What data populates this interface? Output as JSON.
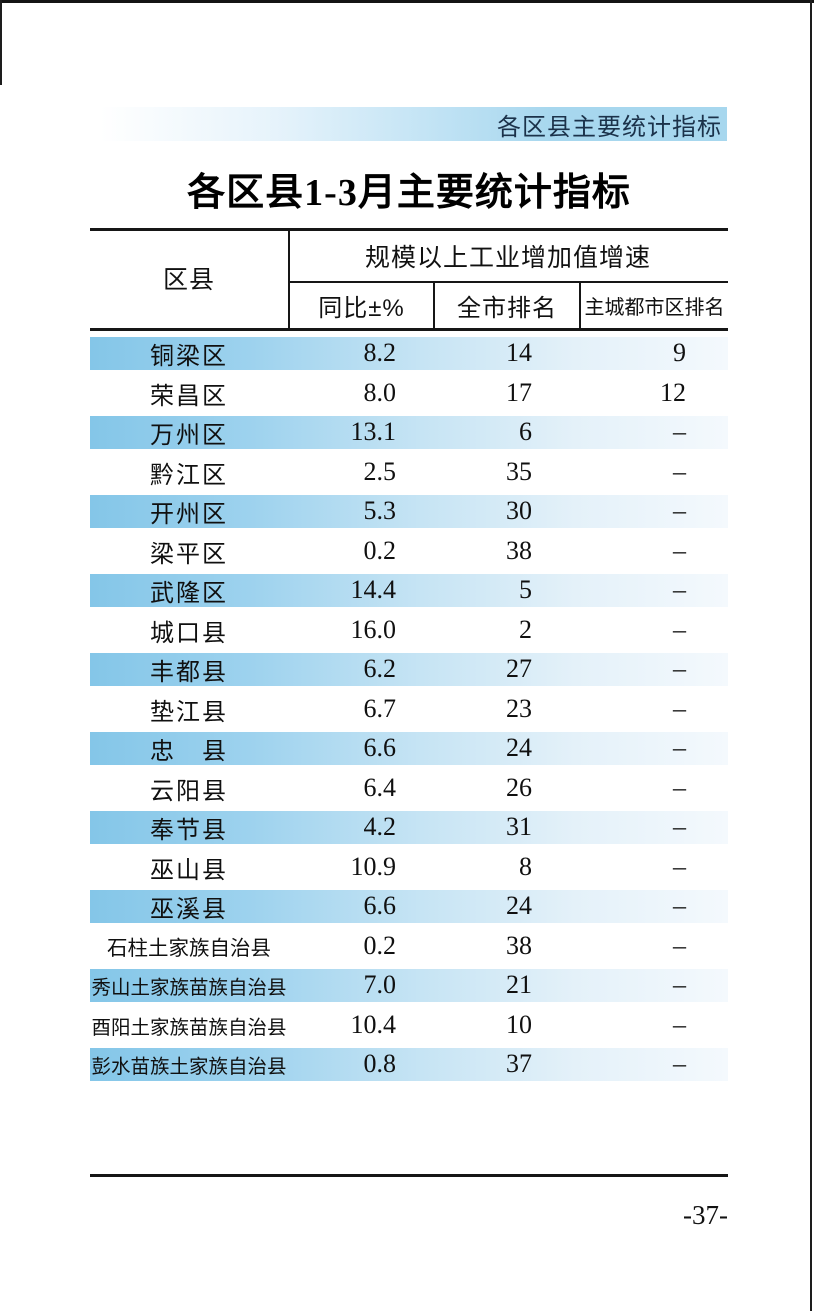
{
  "document": {
    "header_bar_label": "各区县主要统计指标",
    "title": "各区县1-3月主要统计指标",
    "page_number": "-37-"
  },
  "table": {
    "corner_header": "区县",
    "group_header": "规模以上工业增加值增速",
    "sub_headers": {
      "yoy": "同比±%",
      "city_rank": "全市排名",
      "metro_rank": "主城都市区排名"
    },
    "rows": [
      {
        "name": "铜梁区",
        "yoy": "8.2",
        "city_rank": "14",
        "metro_rank": "9"
      },
      {
        "name": "荣昌区",
        "yoy": "8.0",
        "city_rank": "17",
        "metro_rank": "12"
      },
      {
        "name": "万州区",
        "yoy": "13.1",
        "city_rank": "6",
        "metro_rank": "–"
      },
      {
        "name": "黔江区",
        "yoy": "2.5",
        "city_rank": "35",
        "metro_rank": "–"
      },
      {
        "name": "开州区",
        "yoy": "5.3",
        "city_rank": "30",
        "metro_rank": "–"
      },
      {
        "name": "梁平区",
        "yoy": "0.2",
        "city_rank": "38",
        "metro_rank": "–"
      },
      {
        "name": "武隆区",
        "yoy": "14.4",
        "city_rank": "5",
        "metro_rank": "–"
      },
      {
        "name": "城口县",
        "yoy": "16.0",
        "city_rank": "2",
        "metro_rank": "–"
      },
      {
        "name": "丰都县",
        "yoy": "6.2",
        "city_rank": "27",
        "metro_rank": "–"
      },
      {
        "name": "垫江县",
        "yoy": "6.7",
        "city_rank": "23",
        "metro_rank": "–"
      },
      {
        "name": "忠　县",
        "yoy": "6.6",
        "city_rank": "24",
        "metro_rank": "–"
      },
      {
        "name": "云阳县",
        "yoy": "6.4",
        "city_rank": "26",
        "metro_rank": "–"
      },
      {
        "name": "奉节县",
        "yoy": "4.2",
        "city_rank": "31",
        "metro_rank": "–"
      },
      {
        "name": "巫山县",
        "yoy": "10.9",
        "city_rank": "8",
        "metro_rank": "–"
      },
      {
        "name": "巫溪县",
        "yoy": "6.6",
        "city_rank": "24",
        "metro_rank": "–"
      },
      {
        "name": "石柱土家族自治县",
        "yoy": "0.2",
        "city_rank": "38",
        "metro_rank": "–"
      },
      {
        "name": "秀山土家族苗族自治县",
        "yoy": "7.0",
        "city_rank": "21",
        "metro_rank": "–"
      },
      {
        "name": "酉阳土家族苗族自治县",
        "yoy": "10.4",
        "city_rank": "10",
        "metro_rank": "–"
      },
      {
        "name": "彭水苗族土家族自治县",
        "yoy": "0.8",
        "city_rank": "37",
        "metro_rank": "–"
      }
    ]
  },
  "colors": {
    "band_blue": "#84c6e8",
    "strip_blue": "#a7d7ee",
    "strip_text": "#1b324a",
    "line_black": "#161616"
  }
}
